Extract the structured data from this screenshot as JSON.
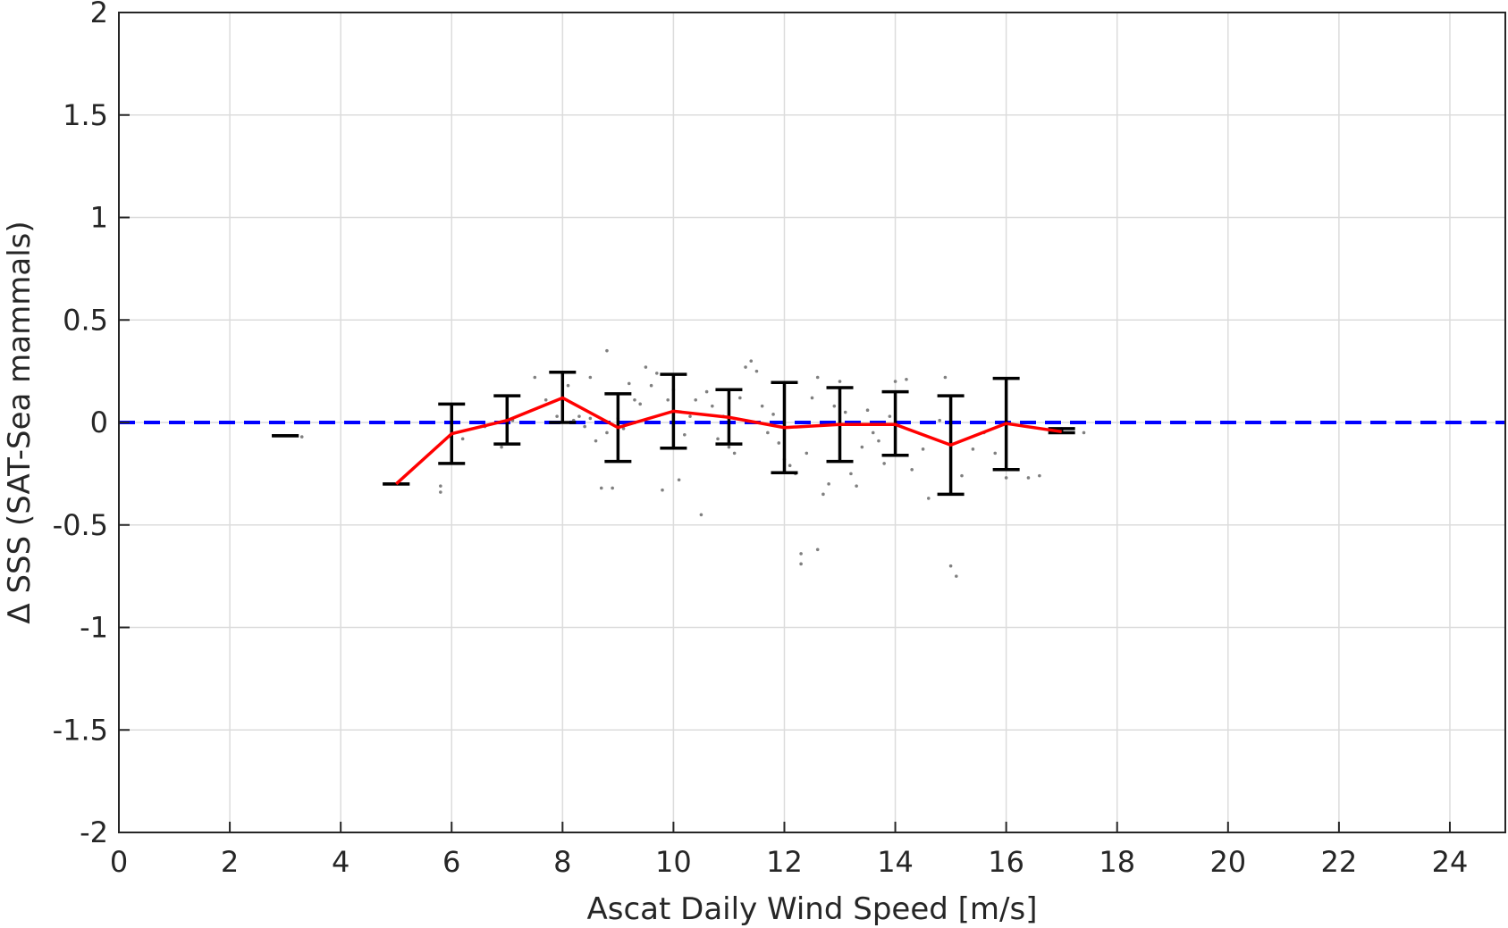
{
  "chart_data": {
    "type": "scatter",
    "xlabel": "Ascat Daily Wind Speed [m/s]",
    "ylabel": "Δ SSS (SAT-Sea mammals)",
    "xlim": [
      0,
      25
    ],
    "ylim": [
      -2,
      2
    ],
    "xticks": [
      0,
      2,
      4,
      6,
      8,
      10,
      12,
      14,
      16,
      18,
      20,
      22,
      24
    ],
    "yticks": [
      -2,
      -1.5,
      -1,
      -0.5,
      0,
      0.5,
      1,
      1.5,
      2
    ],
    "xtick_labels": [
      "0",
      "2",
      "4",
      "6",
      "8",
      "10",
      "12",
      "14",
      "16",
      "18",
      "20",
      "22",
      "24"
    ],
    "ytick_labels": [
      "-2",
      "-1.5",
      "-1",
      "-0.5",
      "0",
      "0.5",
      "1",
      "1.5",
      "2"
    ],
    "grid": true,
    "reference_line": {
      "y": 0,
      "style": "dashed",
      "color": "#0000ff"
    },
    "mean_line": {
      "color": "#ff0000",
      "x": [
        5,
        6,
        7,
        8,
        9,
        10,
        11,
        12,
        13,
        14,
        15,
        16,
        17
      ],
      "y": [
        -0.3,
        -0.055,
        0.01,
        0.12,
        -0.025,
        0.055,
        0.025,
        -0.025,
        -0.01,
        -0.01,
        -0.11,
        -0.005,
        -0.045
      ]
    },
    "error_bars": {
      "color": "#000000",
      "x": [
        3,
        5,
        6,
        7,
        8,
        9,
        10,
        11,
        12,
        13,
        14,
        15,
        16,
        17
      ],
      "lower": [
        -0.065,
        -0.3,
        -0.2,
        -0.105,
        0.0,
        -0.19,
        -0.125,
        -0.105,
        -0.245,
        -0.19,
        -0.16,
        -0.35,
        -0.23,
        -0.05
      ],
      "upper": [
        -0.065,
        -0.3,
        0.09,
        0.13,
        0.245,
        0.14,
        0.235,
        0.16,
        0.195,
        0.17,
        0.15,
        0.13,
        0.215,
        -0.03
      ]
    },
    "scatter_points": {
      "color": "#808080",
      "x": [
        3.3,
        5.8,
        5.8,
        6.2,
        6.6,
        6.9,
        7.1,
        7.5,
        7.7,
        7.9,
        8.1,
        8.2,
        8.3,
        8.4,
        8.5,
        8.5,
        8.6,
        8.7,
        8.8,
        8.8,
        8.9,
        9.0,
        9.1,
        9.2,
        9.3,
        9.4,
        9.5,
        9.6,
        9.7,
        9.8,
        9.9,
        10.0,
        10.1,
        10.2,
        10.3,
        10.4,
        10.5,
        10.6,
        10.7,
        10.8,
        10.9,
        11.0,
        11.1,
        11.2,
        11.3,
        11.4,
        11.5,
        11.6,
        11.7,
        11.8,
        11.9,
        12.0,
        12.1,
        12.2,
        12.3,
        12.3,
        12.4,
        12.5,
        12.6,
        12.6,
        12.7,
        12.8,
        12.9,
        13.0,
        13.1,
        13.2,
        13.3,
        13.4,
        13.5,
        13.6,
        13.7,
        13.8,
        13.9,
        14.0,
        14.2,
        14.3,
        14.5,
        14.6,
        14.8,
        14.9,
        15.0,
        15.1,
        15.2,
        15.4,
        15.6,
        15.8,
        16.0,
        16.2,
        16.4,
        16.6,
        17.0,
        17.4
      ],
      "y": [
        -0.07,
        -0.31,
        -0.34,
        -0.08,
        -0.02,
        -0.12,
        0.01,
        0.22,
        0.11,
        0.03,
        0.18,
        0.01,
        0.03,
        -0.02,
        0.02,
        0.22,
        -0.09,
        -0.32,
        0.35,
        -0.05,
        -0.32,
        0.02,
        -0.03,
        0.19,
        0.11,
        0.09,
        0.27,
        0.18,
        0.24,
        -0.33,
        0.11,
        0.16,
        -0.28,
        -0.06,
        0.03,
        0.11,
        -0.45,
        0.15,
        0.08,
        -0.08,
        0.03,
        -0.12,
        -0.15,
        0.12,
        0.27,
        0.3,
        0.25,
        0.08,
        -0.05,
        0.04,
        -0.1,
        -0.18,
        -0.21,
        -0.25,
        -0.64,
        -0.69,
        -0.15,
        0.12,
        0.22,
        -0.62,
        -0.35,
        -0.3,
        0.08,
        0.2,
        0.05,
        -0.25,
        -0.31,
        -0.12,
        0.06,
        -0.05,
        -0.09,
        -0.2,
        0.03,
        0.2,
        0.21,
        -0.23,
        -0.13,
        -0.37,
        0.01,
        0.22,
        -0.7,
        -0.75,
        -0.26,
        -0.13,
        -0.05,
        -0.15,
        -0.27,
        -0.23,
        -0.27,
        -0.26,
        -0.03,
        -0.05
      ]
    }
  }
}
